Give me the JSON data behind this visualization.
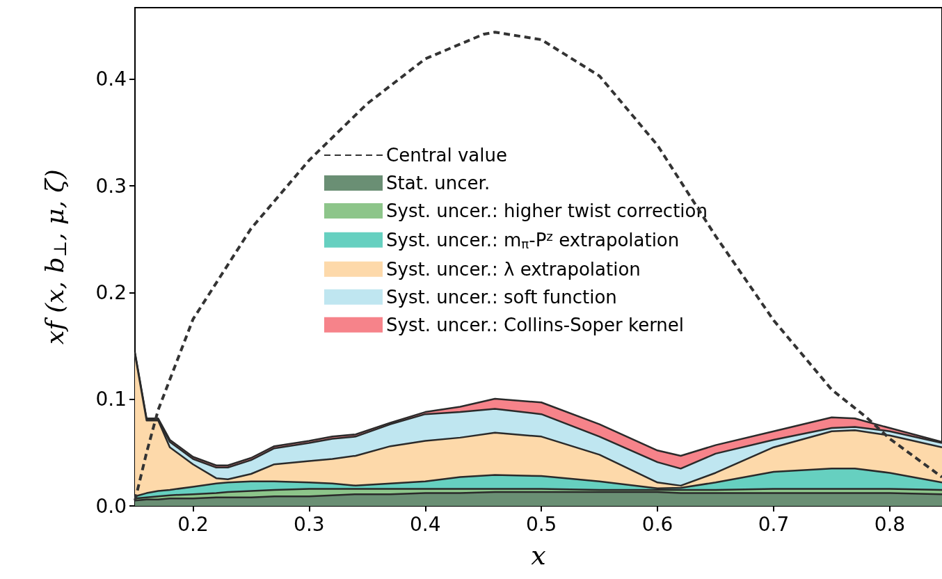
{
  "chart_data": {
    "type": "area",
    "stacked": true,
    "xlabel": "x",
    "ylabel": "xf (x, b$_{⊥}$, μ, ζ)",
    "x": [
      0.15,
      0.16,
      0.17,
      0.18,
      0.2,
      0.22,
      0.23,
      0.25,
      0.27,
      0.3,
      0.32,
      0.34,
      0.37,
      0.4,
      0.43,
      0.46,
      0.5,
      0.55,
      0.6,
      0.62,
      0.65,
      0.7,
      0.75,
      0.77,
      0.8,
      0.845
    ],
    "xlim": [
      0.15,
      0.845
    ],
    "xticks": [
      0.2,
      0.3,
      0.4,
      0.5,
      0.6,
      0.7,
      0.8
    ],
    "ylim": [
      0,
      0.467
    ],
    "yticks": [
      {
        "value": 0,
        "label": "0.0"
      },
      0.1,
      0.2,
      0.3,
      0.4
    ],
    "legend": "center",
    "grid": false,
    "series": [
      {
        "name": "Central value",
        "type": "line",
        "line_style": "dashed",
        "color": "#333333",
        "x": [
          0.15,
          0.16,
          0.17,
          0.2,
          0.25,
          0.3,
          0.35,
          0.4,
          0.45,
          0.46,
          0.5,
          0.55,
          0.6,
          0.65,
          0.7,
          0.75,
          0.78,
          0.8,
          0.845
        ],
        "values": [
          0.005,
          0.05,
          0.09,
          0.175,
          0.26,
          0.324,
          0.377,
          0.419,
          0.442,
          0.444,
          0.437,
          0.403,
          0.338,
          0.253,
          0.174,
          0.109,
          0.083,
          0.063,
          0.027
        ]
      },
      {
        "name": "Stat. uncer.",
        "color": "#6a8f74",
        "values": [
          0.005,
          0.006,
          0.006,
          0.007,
          0.007,
          0.008,
          0.008,
          0.008,
          0.009,
          0.009,
          0.01,
          0.011,
          0.011,
          0.012,
          0.012,
          0.013,
          0.013,
          0.013,
          0.013,
          0.012,
          0.012,
          0.012,
          0.012,
          0.012,
          0.012,
          0.011
        ]
      },
      {
        "name": "Syst. uncer.: higher twist correction",
        "color": "#8dc58a",
        "values": [
          0.002,
          0.002,
          0.003,
          0.003,
          0.004,
          0.004,
          0.005,
          0.006,
          0.006,
          0.007,
          0.006,
          0.005,
          0.005,
          0.004,
          0.004,
          0.003,
          0.003,
          0.002,
          0.002,
          0.003,
          0.003,
          0.004,
          0.004,
          0.004,
          0.004,
          0.004
        ]
      },
      {
        "name": "Syst. uncer.: m$_{π}$-P$^{z}$ extrapolation",
        "color": "#66d0c0",
        "values": [
          0.002,
          0.004,
          0.005,
          0.005,
          0.007,
          0.009,
          0.009,
          0.009,
          0.008,
          0.006,
          0.005,
          0.003,
          0.005,
          0.007,
          0.011,
          0.013,
          0.012,
          0.008,
          0.0015,
          0.002,
          0.007,
          0.016,
          0.019,
          0.019,
          0.015,
          0.007
        ]
      },
      {
        "name": "Syst. uncer.: λ extrapolation",
        "color": "#fdd9aa",
        "values": [
          0.133,
          0.068,
          0.066,
          0.04,
          0.021,
          0.005,
          0.003,
          0.007,
          0.016,
          0.02,
          0.023,
          0.028,
          0.035,
          0.038,
          0.037,
          0.0397,
          0.037,
          0.025,
          0.0055,
          0.002,
          0.009,
          0.023,
          0.035,
          0.036,
          0.035,
          0.033
        ]
      },
      {
        "name": "Syst. uncer.: soft function",
        "color": "#bfe6f0",
        "values": [
          0.001,
          0.001,
          0.001,
          0.005,
          0.005,
          0.01,
          0.011,
          0.013,
          0.015,
          0.017,
          0.019,
          0.018,
          0.0206,
          0.025,
          0.024,
          0.0223,
          0.021,
          0.017,
          0.019,
          0.016,
          0.018,
          0.007,
          0.003,
          0.003,
          0.004,
          0.004
        ]
      },
      {
        "name": "Syst. uncer.: Collins-Soper kernel",
        "color": "#f6838a",
        "values": [
          0.001,
          0.001,
          0.001,
          0.002,
          0.002,
          0.002,
          0.002,
          0.002,
          0.002,
          0.002,
          0.002,
          0.002,
          0.0014,
          0.002,
          0.005,
          0.0095,
          0.011,
          0.0116,
          0.011,
          0.012,
          0.008,
          0.008,
          0.01,
          0.008,
          0.003,
          0.001
        ]
      }
    ]
  }
}
